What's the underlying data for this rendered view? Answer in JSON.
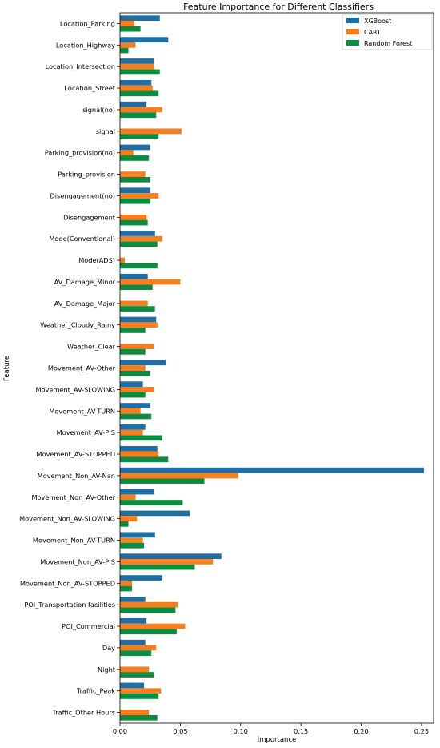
{
  "chart_data": {
    "type": "bar",
    "orientation": "horizontal",
    "title": "Feature Importance for Different Classifiers",
    "xlabel": "Importance",
    "ylabel": "Feature",
    "xlim": [
      0,
      0.26
    ],
    "xticks": [
      "0.00",
      "0.05",
      "0.10",
      "0.15",
      "0.20",
      "0.25"
    ],
    "xtick_values": [
      0,
      0.05,
      0.1,
      0.15,
      0.2,
      0.25
    ],
    "grid": false,
    "legend_position": "top-right",
    "categories": [
      "Location_Parking",
      "Location_Highway",
      "Location_Intersection",
      "Location_Street",
      "signal(no)",
      "signal",
      "Parking_provision(no)",
      "Parking_provision",
      "Disengagement(no)",
      "Disengagement",
      "Mode(Conventional)",
      "Mode(ADS)",
      "AV_Damage_Minor",
      "AV_Damage_Major",
      "Weather_Cloudy_Rainy",
      "Weather_Clear",
      "Movement_AV-Other",
      "Movement_AV-SLOWING",
      "Movement_AV-TURN",
      "Movement_AV-P S",
      "Movement_AV-STOPPED",
      "Movement_Non_AV-Nan",
      "Movement_Non_AV-Other",
      "Movement_Non_AV-SLOWING",
      "Movement_Non_AV-TURN",
      "Movement_Non_AV-P S",
      "Movement_Non_AV-STOPPED",
      "POI_Transportation facilities",
      "POI_Commercial",
      "Day",
      "Night",
      "Traffic_Peak",
      "Traffic_Other Hours"
    ],
    "series": [
      {
        "name": "XGBoost",
        "color": "#1f6fa5",
        "values": [
          0.033,
          0.04,
          0.028,
          0.026,
          0.022,
          0,
          0.025,
          0,
          0.025,
          0,
          0.029,
          0,
          0.023,
          0,
          0.03,
          0,
          0.038,
          0.019,
          0.025,
          0.021,
          0.031,
          0.252,
          0.028,
          0.058,
          0.029,
          0.084,
          0.035,
          0.021,
          0.022,
          0.021,
          0,
          0.02,
          0
        ]
      },
      {
        "name": "CART",
        "color": "#f57f20",
        "values": [
          0.012,
          0.013,
          0.028,
          0.027,
          0.035,
          0.051,
          0.011,
          0.021,
          0.032,
          0.022,
          0.035,
          0.004,
          0.05,
          0.023,
          0.031,
          0.028,
          0.021,
          0.028,
          0.017,
          0.019,
          0.032,
          0.098,
          0.013,
          0.014,
          0.019,
          0.077,
          0.01,
          0.048,
          0.054,
          0.03,
          0.024,
          0.034,
          0.024
        ]
      },
      {
        "name": "Random Forest",
        "color": "#0d8c3f",
        "values": [
          0.017,
          0.007,
          0.033,
          0.032,
          0.03,
          0.032,
          0.024,
          0.025,
          0.025,
          0.023,
          0.031,
          0.031,
          0.027,
          0.029,
          0.021,
          0.021,
          0.025,
          0.021,
          0.026,
          0.035,
          0.04,
          0.07,
          0.052,
          0.007,
          0.02,
          0.062,
          0.01,
          0.046,
          0.047,
          0.026,
          0.028,
          0.032,
          0.031
        ]
      }
    ]
  }
}
